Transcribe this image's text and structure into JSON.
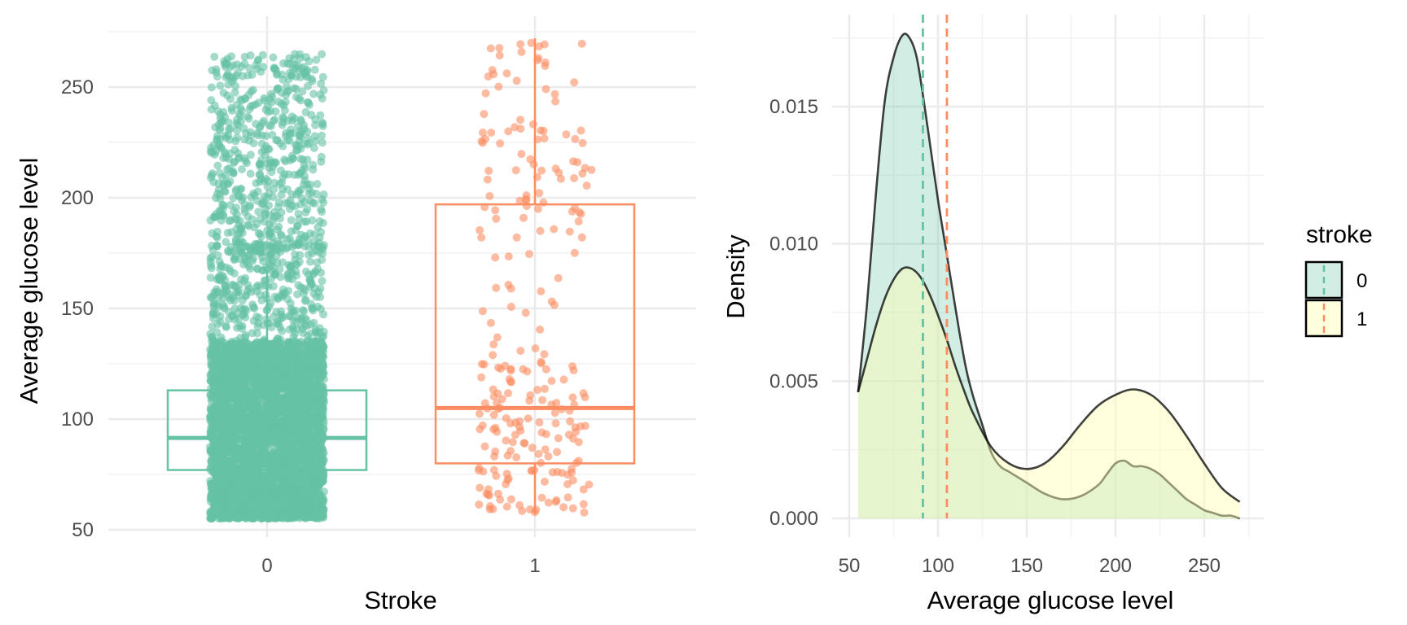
{
  "chart_data": [
    {
      "type": "boxplot",
      "xlabel": "Stroke",
      "ylabel": "Average glucose level",
      "categories": [
        "0",
        "1"
      ],
      "ylim": [
        50,
        275
      ],
      "yticks": [
        50,
        100,
        150,
        200,
        250
      ],
      "grid": true,
      "jitter_points": true,
      "colors": {
        "0": "#66c2a5",
        "1": "#fc8d62"
      },
      "boxes": [
        {
          "category": "0",
          "q1": 77,
          "median": 91.5,
          "q3": 113,
          "whisker_low": 55.1,
          "whisker_high": 167,
          "min": 55.1,
          "max": 268,
          "n_points": 4861
        },
        {
          "category": "1",
          "q1": 80,
          "median": 105,
          "q3": 197,
          "whisker_low": 57,
          "whisker_high": 272,
          "min": 57,
          "max": 272,
          "n_points": 249
        }
      ]
    },
    {
      "type": "area",
      "xlabel": "Average glucose level",
      "ylabel": "Density",
      "xlim": [
        50,
        275
      ],
      "ylim": [
        0,
        0.018
      ],
      "xticks": [
        50,
        100,
        150,
        200,
        250
      ],
      "yticks": [
        "0.000",
        "0.005",
        "0.010",
        "0.015"
      ],
      "grid": true,
      "legend": {
        "title": "stroke",
        "position": "right",
        "entries": [
          "0",
          "1"
        ]
      },
      "fill_colors": {
        "0": "#66c2a5",
        "1": "#ffffb3"
      },
      "vline_colors": {
        "0": "#66c2a5",
        "1": "#fc8d62"
      },
      "vlines": {
        "0": 91.5,
        "1": 105
      },
      "series": [
        {
          "name": "0",
          "x": [
            55,
            60,
            65,
            70,
            75,
            80,
            84,
            88,
            92,
            96,
            100,
            104,
            108,
            112,
            116,
            120,
            125,
            130,
            135,
            140,
            145,
            150,
            160,
            170,
            180,
            190,
            195,
            200,
            205,
            210,
            215,
            220,
            225,
            230,
            235,
            240,
            245,
            250,
            255,
            260,
            265,
            270
          ],
          "y": [
            0.0046,
            0.0078,
            0.0118,
            0.0152,
            0.0168,
            0.0176,
            0.0175,
            0.0168,
            0.0152,
            0.0134,
            0.0116,
            0.01,
            0.0084,
            0.0068,
            0.0054,
            0.0044,
            0.0034,
            0.0024,
            0.0019,
            0.0017,
            0.0015,
            0.0013,
            0.0009,
            0.0007,
            0.0008,
            0.0012,
            0.0016,
            0.002,
            0.0021,
            0.0019,
            0.0019,
            0.0018,
            0.0016,
            0.0013,
            0.001,
            0.0007,
            0.0005,
            0.0003,
            0.0002,
            0.0001,
            0.0001,
            0.0
          ]
        },
        {
          "name": "1",
          "x": [
            55,
            60,
            65,
            70,
            75,
            80,
            85,
            90,
            95,
            100,
            105,
            110,
            115,
            120,
            130,
            140,
            150,
            160,
            170,
            180,
            190,
            200,
            210,
            220,
            230,
            240,
            250,
            260,
            270
          ],
          "y": [
            0.0046,
            0.0058,
            0.007,
            0.008,
            0.0087,
            0.0091,
            0.0091,
            0.0088,
            0.0082,
            0.0074,
            0.0065,
            0.0055,
            0.0046,
            0.0038,
            0.0026,
            0.002,
            0.0018,
            0.002,
            0.0026,
            0.0034,
            0.0041,
            0.0045,
            0.0047,
            0.0045,
            0.0039,
            0.003,
            0.002,
            0.0011,
            0.0006
          ]
        }
      ]
    }
  ]
}
